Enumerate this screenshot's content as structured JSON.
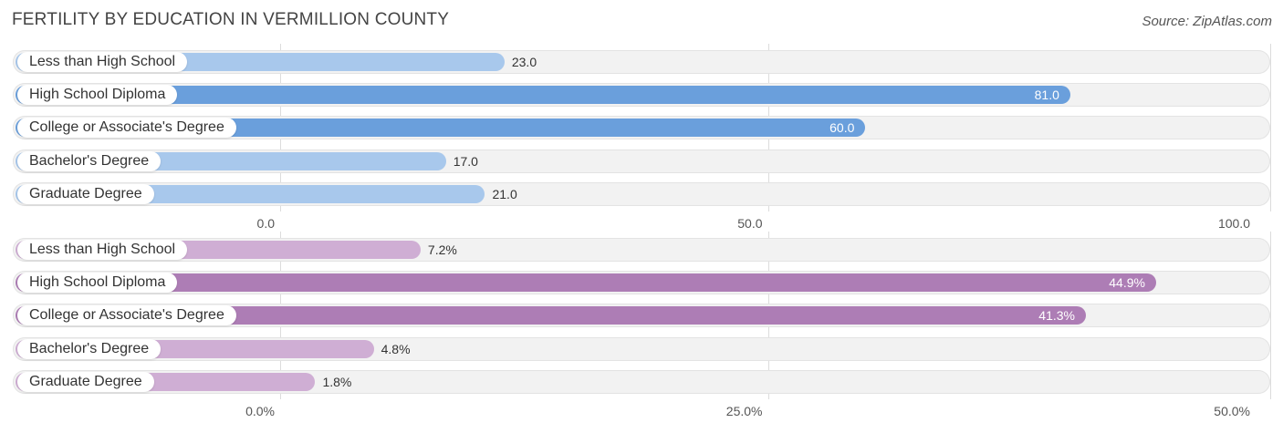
{
  "title": "FERTILITY BY EDUCATION IN VERMILLION COUNTY",
  "source": "Source: ZipAtlas.com",
  "chart_data": [
    {
      "type": "bar",
      "orientation": "horizontal",
      "categories": [
        "Less than High School",
        "High School Diploma",
        "College or Associate's Degree",
        "Bachelor's Degree",
        "Graduate Degree"
      ],
      "values": [
        23.0,
        81.0,
        60.0,
        17.0,
        21.0
      ],
      "value_labels": [
        "23.0",
        "81.0",
        "60.0",
        "17.0",
        "21.0"
      ],
      "xlim": [
        0,
        100
      ],
      "ticks": [
        "0.0",
        "50.0",
        "100.0"
      ],
      "colors": {
        "strong": "#6a9fdc",
        "light": "#a8c8ec"
      }
    },
    {
      "type": "bar",
      "orientation": "horizontal",
      "categories": [
        "Less than High School",
        "High School Diploma",
        "College or Associate's Degree",
        "Bachelor's Degree",
        "Graduate Degree"
      ],
      "values": [
        7.2,
        44.9,
        41.3,
        4.8,
        1.8
      ],
      "value_labels": [
        "7.2%",
        "44.9%",
        "41.3%",
        "4.8%",
        "1.8%"
      ],
      "xlim": [
        0,
        50
      ],
      "ticks": [
        "0.0%",
        "25.0%",
        "50.0%"
      ],
      "colors": {
        "strong": "#ad7db5",
        "light": "#cfaed4"
      }
    }
  ]
}
